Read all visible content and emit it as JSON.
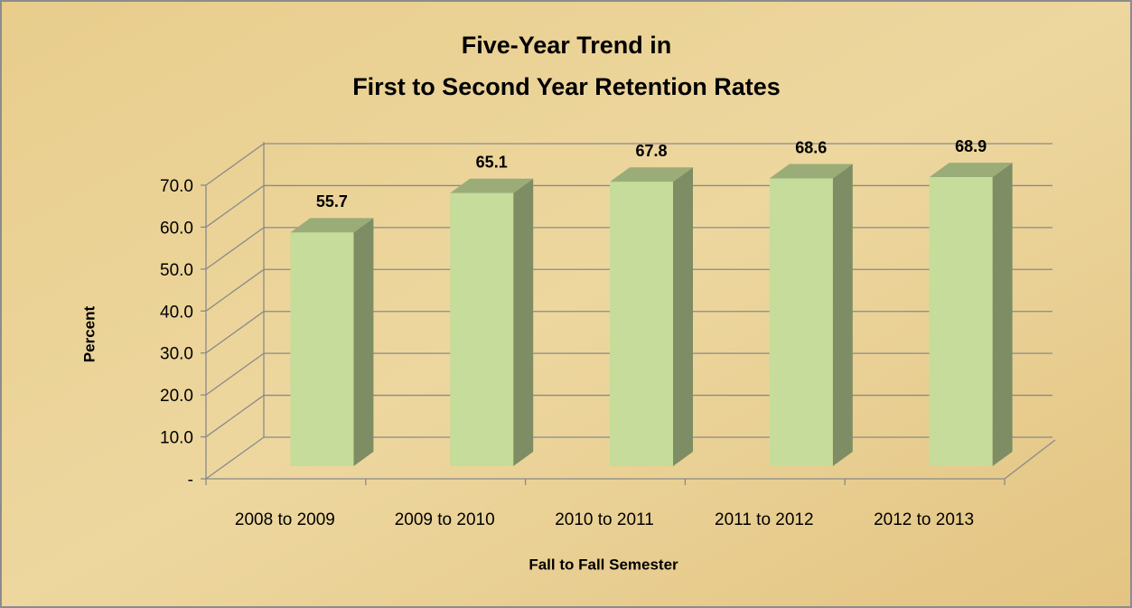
{
  "chart_data": {
    "type": "bar3d",
    "title": [
      "Five-Year Trend in",
      "First to Second Year Retention Rates"
    ],
    "x_label": "Fall to Fall Semester",
    "y_label": "Percent",
    "categories": [
      "2008 to 2009",
      "2009 to 2010",
      "2010 to 2011",
      "2011 to 2012",
      "2012 to 2013"
    ],
    "values": [
      55.7,
      65.1,
      67.8,
      68.6,
      68.9
    ],
    "color": "#c5dc9a",
    "ylim": [
      0,
      70
    ],
    "yticks": [
      {
        "value": 0,
        "label": "-"
      },
      {
        "value": 10,
        "label": "10.0"
      },
      {
        "value": 20,
        "label": "20.0"
      },
      {
        "value": 30,
        "label": "30.0"
      },
      {
        "value": 40,
        "label": "40.0"
      },
      {
        "value": 50,
        "label": "50.0"
      },
      {
        "value": 60,
        "label": "60.0"
      },
      {
        "value": 70,
        "label": "70.0"
      }
    ],
    "grid": true
  }
}
